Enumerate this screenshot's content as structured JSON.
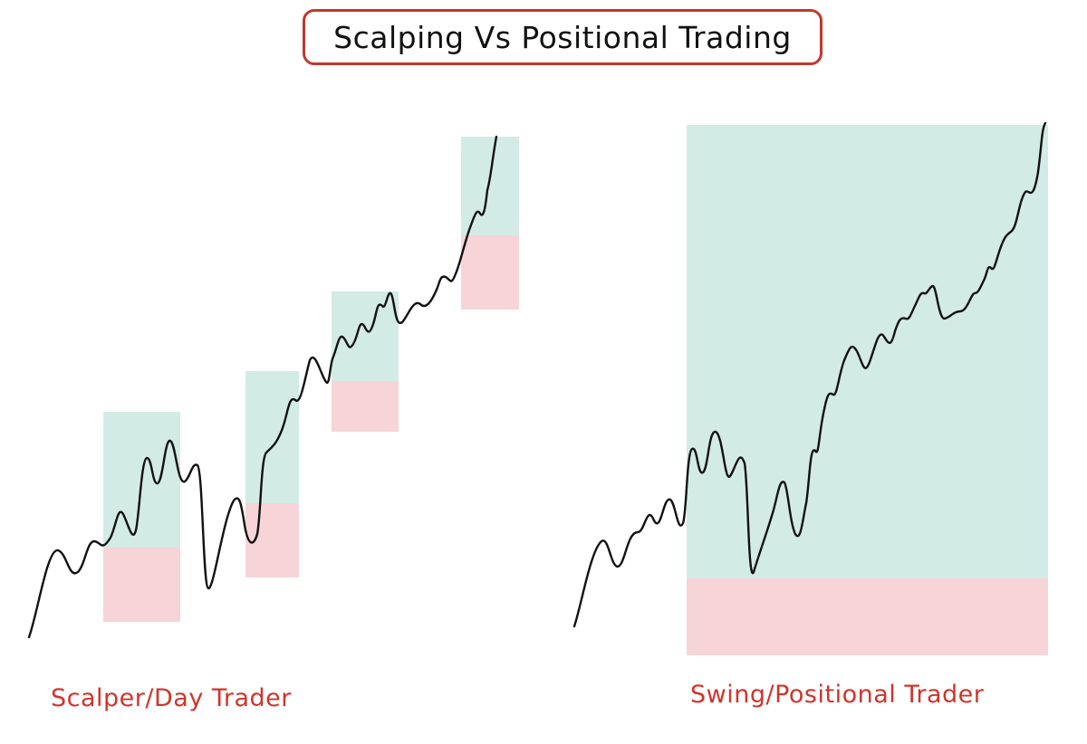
{
  "title": "Scalping Vs Positional Trading",
  "left_label": "Scalper/Day Trader",
  "right_label": "Swing/Positional Trader",
  "colors": {
    "title_border": "#c0392b",
    "caption": "#d0342c",
    "profit_zone": "#d3ebe5",
    "loss_zone": "#f6d4d8",
    "price_line": "#111111"
  }
}
